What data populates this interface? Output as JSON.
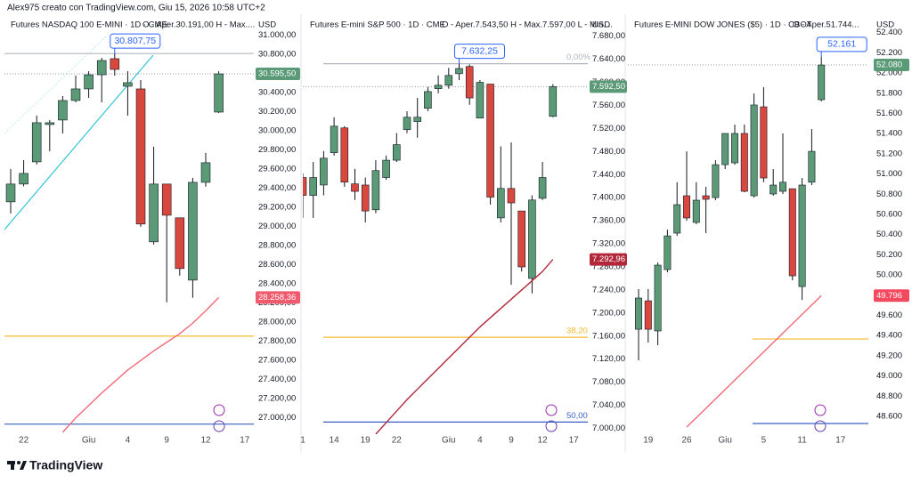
{
  "header": "Alex975 creato con TradingView.com, Giu 15, 2026 10:58 UTC+2",
  "footer": "TradingView",
  "chart_data": [
    {
      "type": "candlestick",
      "title": "Futures NASDAQ 100 E-MINI · 1D · CME",
      "info": "O - Aper.30.191,00  H - Max....",
      "currency": "USD",
      "up_color": "#5b9a77",
      "down_color": "#d9483f",
      "ma_color": "#f06a78",
      "categories": [
        null,
        "22",
        null,
        null,
        null,
        null,
        "Giu",
        null,
        null,
        "4",
        null,
        null,
        "9",
        null,
        null,
        "12",
        null,
        null,
        "17"
      ],
      "open": [
        29258,
        29444,
        29676,
        30066,
        30113,
        30317,
        30438,
        30586,
        30754,
        30466,
        30438,
        28840,
        29444,
        29091,
        28440,
        29462,
        30196,
        null,
        null
      ],
      "high": [
        29602,
        29694,
        30159,
        30113,
        30363,
        30577,
        30623,
        30763,
        30807.75,
        30623,
        30531,
        29834,
        29444,
        29091,
        29509,
        29769,
        30623,
        null,
        null
      ],
      "low": [
        29137,
        29420,
        29648,
        29787,
        29973,
        30298,
        30345,
        30298,
        30577,
        30159,
        28998,
        28812,
        28208,
        28487,
        28255,
        29416,
        30187,
        null,
        null
      ],
      "close": [
        29444,
        29555,
        30085,
        30085,
        30317,
        30438,
        30586,
        30735,
        30642,
        30503,
        29026,
        29444,
        29118,
        28561,
        29462,
        29667,
        30595.5,
        null,
        null
      ],
      "ma": [
        null,
        null,
        null,
        null,
        26850,
        27000,
        27130,
        27260,
        27380,
        27500,
        27600,
        27700,
        27790,
        27880,
        27990,
        28120,
        28258.36,
        null,
        null
      ],
      "ylim": [
        26830,
        31200
      ],
      "yticks": [
        {
          "value": 27000,
          "label": "27.000,00"
        },
        {
          "value": 27200,
          "label": "27.200,00"
        },
        {
          "value": 27400,
          "label": "27.400,00"
        },
        {
          "value": 27600,
          "label": "27.600,00"
        },
        {
          "value": 27800,
          "label": "27.800,00"
        },
        {
          "value": 28000,
          "label": "28.000,00"
        },
        {
          "value": 28200,
          "label": "28.200,00"
        },
        {
          "value": 28400,
          "label": "28.400,00"
        },
        {
          "value": 28600,
          "label": "28.600,00"
        },
        {
          "value": 28800,
          "label": "28.800,00"
        },
        {
          "value": 29000,
          "label": "29.000,00"
        },
        {
          "value": 29200,
          "label": "29.200,00"
        },
        {
          "value": 29400,
          "label": "29.400,00"
        },
        {
          "value": 29600,
          "label": "29.600,00"
        },
        {
          "value": 29800,
          "label": "29.800,00"
        },
        {
          "value": 30000,
          "label": "30.000,00"
        },
        {
          "value": 30200,
          "label": "30.200,00"
        },
        {
          "value": 30400,
          "label": "30.400,00"
        },
        {
          "value": 30600,
          "label": "30.600,00"
        },
        {
          "value": 30800,
          "label": "30.800,00"
        },
        {
          "value": 31000,
          "label": "31.000,00"
        }
      ],
      "hlines": [
        {
          "value": 30807.75,
          "color": "#b2b5be"
        },
        {
          "value": 27855,
          "color": "#f5b92e"
        },
        {
          "value": 26935,
          "color": "#3d5fc4"
        }
      ],
      "last_price": {
        "value": 30595.5,
        "label": "30.595,50",
        "color": "#5b9a77"
      },
      "ma_label": {
        "value": 28258.36,
        "label": "28.258,36",
        "color": "#ef5a6c"
      },
      "high_label": {
        "value": 30807.75,
        "label": "30.807,75"
      }
    },
    {
      "type": "candlestick",
      "title": "Futures E-mini S&P 500 · 1D · CME",
      "info": "O - Aper.7.543,50  H - Max.7.597,00  L - Min....",
      "currency": "USD",
      "up_color": "#5b9a77",
      "down_color": "#d9483f",
      "ma_color": "#b2283a",
      "categories": [
        "1",
        null,
        null,
        "14",
        null,
        null,
        "19",
        null,
        null,
        "22",
        null,
        null,
        null,
        null,
        "Giu",
        null,
        null,
        "4",
        null,
        null,
        "9",
        null,
        null,
        "12",
        null,
        null,
        "17"
      ],
      "open": [
        7435,
        7404,
        7422,
        7478,
        7521,
        7424,
        7422,
        7379,
        7435,
        7465,
        7518,
        7532,
        7555,
        7589,
        7595,
        7615,
        7627.5,
        7538,
        7597,
        7365,
        7416,
        7377,
        7260,
        7399,
        7541,
        null,
        null
      ],
      "high": [
        7442,
        7462,
        7481,
        7539.5,
        7524,
        7450,
        7435,
        7465,
        7473,
        7512,
        7550,
        7573,
        7592,
        7612,
        7625,
        7632.25,
        7631,
        7604,
        7597,
        7489,
        7496,
        7377,
        7404,
        7462,
        7597,
        null,
        null
      ],
      "low": [
        7365,
        7365,
        7404,
        7473,
        7419,
        7396,
        7357,
        7373,
        7431,
        7462,
        7512,
        7504,
        7550,
        7581,
        7589,
        7604,
        7561,
        7538,
        7388,
        7357,
        7249,
        7272,
        7234,
        7396,
        7539.5,
        null,
        null
      ],
      "close": [
        7404,
        7435,
        7468.5,
        7524,
        7427,
        7411,
        7377,
        7447,
        7465,
        7492,
        7539.5,
        7539.5,
        7584,
        7595,
        7612,
        7624,
        7573,
        7600,
        7401,
        7416,
        7391,
        7280,
        7396,
        7435,
        7592.5,
        null,
        null
      ],
      "ma": [
        null,
        null,
        null,
        null,
        null,
        null,
        null,
        6990,
        7010,
        7030,
        7050,
        7068,
        7086,
        7104,
        7122,
        7140,
        7158,
        7176,
        7192,
        7208,
        7224,
        7240,
        7256,
        7272,
        7292.96,
        null,
        null
      ],
      "ylim": [
        6990,
        7715
      ],
      "yticks": [
        {
          "value": 7000,
          "label": "7.000,00"
        },
        {
          "value": 7040,
          "label": "7.040,00"
        },
        {
          "value": 7080,
          "label": "7.080,00"
        },
        {
          "value": 7120,
          "label": "7.120,00"
        },
        {
          "value": 7160,
          "label": "7.160,00"
        },
        {
          "value": 7200,
          "label": "7.200,00"
        },
        {
          "value": 7240,
          "label": "7.240,00"
        },
        {
          "value": 7280,
          "label": "7.280,00"
        },
        {
          "value": 7320,
          "label": "7.320,00"
        },
        {
          "value": 7360,
          "label": "7.360,00"
        },
        {
          "value": 7400,
          "label": "7.400,00"
        },
        {
          "value": 7440,
          "label": "7.440,00"
        },
        {
          "value": 7480,
          "label": "7.480,00"
        },
        {
          "value": 7520,
          "label": "7.520,00"
        },
        {
          "value": 7560,
          "label": "7.560,00"
        },
        {
          "value": 7600,
          "label": "7.600,00"
        },
        {
          "value": 7640,
          "label": "7.640,00"
        },
        {
          "value": 7680,
          "label": "7.680,00"
        }
      ],
      "hlines": [
        {
          "value": 7632.25,
          "color": "#b2b5be",
          "label": "0,00%"
        },
        {
          "value": 7158,
          "color": "#f5b92e",
          "label": "38,20"
        },
        {
          "value": 7011,
          "color": "#3d5fc4",
          "label": "50,00"
        }
      ],
      "last_price": {
        "value": 7592.5,
        "label": "7.592,50",
        "color": "#5b9a77"
      },
      "ma_label": {
        "value": 7292.96,
        "label": "7.292,96",
        "color": "#b2283a"
      },
      "high_label": {
        "value": 7632.25,
        "label": "7.632,25"
      }
    },
    {
      "type": "candlestick",
      "title": "Futures E-MINI DOW JONES ($5) · 1D · CBOT",
      "info": "O - Aper.51.744...",
      "currency": "USD",
      "up_color": "#5b9a77",
      "down_color": "#d9483f",
      "ma_color": "#f06a78",
      "categories": [
        null,
        "19",
        null,
        null,
        null,
        "26",
        null,
        null,
        null,
        "Giu",
        null,
        null,
        null,
        "5",
        null,
        null,
        null,
        "11",
        null,
        null,
        null,
        "17"
      ],
      "open": [
        49463,
        49745,
        49446,
        50054,
        50415,
        50785,
        50521,
        50785,
        50767,
        51093,
        51111,
        51402,
        50785,
        51666,
        50803,
        50829,
        50855,
        49886,
        50919,
        51736,
        null,
        null
      ],
      "high": [
        49860,
        49860,
        50124,
        50450,
        50919,
        51225,
        50919,
        50873,
        51137,
        51402,
        51490,
        51490,
        51798,
        51860,
        51049,
        51402,
        50855,
        50961,
        51446,
        52161,
        null,
        null
      ],
      "low": [
        49155,
        49331,
        49305,
        50027,
        50388,
        50538,
        50503,
        50415,
        50741,
        51049,
        51093,
        50820,
        50767,
        50919,
        50785,
        50803,
        49948,
        49754,
        50891,
        51720,
        null,
        null
      ],
      "close": [
        49772,
        49463,
        50098,
        50388,
        50697,
        50565,
        50741,
        50750,
        51093,
        51402,
        51402,
        50829,
        51684,
        50961,
        50891,
        50919,
        49992,
        50891,
        51225,
        52080,
        null,
        null
      ],
      "ma": [
        null,
        null,
        null,
        null,
        null,
        48494,
        48587,
        48680,
        48773,
        48866,
        48959,
        49052,
        49145,
        49238,
        49331,
        49424,
        49517,
        49610,
        49703,
        49796,
        null,
        null
      ],
      "ylim": [
        48424,
        52565
      ],
      "yticks": [
        {
          "value": 48600,
          "label": "48.600"
        },
        {
          "value": 48800,
          "label": "48.800"
        },
        {
          "value": 49000,
          "label": "49.000"
        },
        {
          "value": 49200,
          "label": "49.200"
        },
        {
          "value": 49400,
          "label": "49.400"
        },
        {
          "value": 49600,
          "label": "49.600"
        },
        {
          "value": 49800,
          "label": "49.800"
        },
        {
          "value": 50000,
          "label": "50.000"
        },
        {
          "value": 50200,
          "label": "50.200"
        },
        {
          "value": 50400,
          "label": "50.400"
        },
        {
          "value": 50600,
          "label": "50.600"
        },
        {
          "value": 50800,
          "label": "50.800"
        },
        {
          "value": 51000,
          "label": "51.000"
        },
        {
          "value": 51200,
          "label": "51.200"
        },
        {
          "value": 51400,
          "label": "51.400"
        },
        {
          "value": 51600,
          "label": "51.600"
        },
        {
          "value": 51800,
          "label": "51.800"
        },
        {
          "value": 52000,
          "label": "52.000"
        },
        {
          "value": 52200,
          "label": "52.200"
        },
        {
          "value": 52400,
          "label": "52.400"
        }
      ],
      "hlines": [
        {
          "value": 49366,
          "color": "#f5b92e"
        },
        {
          "value": 48530,
          "color": "#3d5fc4"
        }
      ],
      "last_price": {
        "value": 52080,
        "label": "52.080",
        "color": "#5b9a77"
      },
      "ma_label": {
        "value": 49796,
        "label": "49.796",
        "color": "#f2495e"
      },
      "high_label": {
        "value": 52161,
        "label": "52.161"
      }
    }
  ]
}
